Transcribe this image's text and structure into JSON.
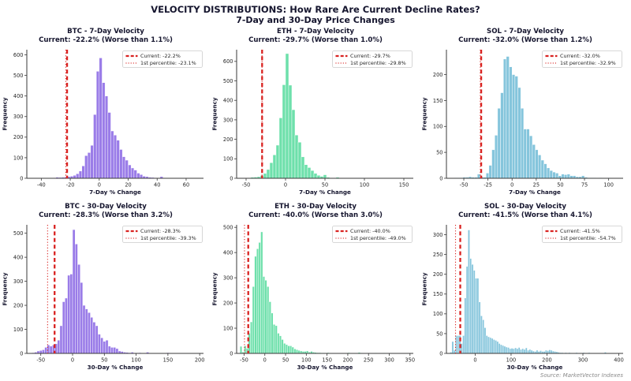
{
  "figure": {
    "title": "VELOCITY DISTRIBUTIONS: How Rare Are Current Decline Rates?",
    "subtitle": "7-Day and 30-Day Price Changes",
    "source": "Source: MarketVector Indexes"
  },
  "colors": {
    "btc": "#9a7ce8",
    "eth": "#6ee0ab",
    "sol": "#85c5dc",
    "line_red": "#d92220",
    "spine": "#3a3a3a"
  },
  "chart_data": [
    {
      "type": "bar",
      "asset": "BTC",
      "title": "BTC - 7-Day Velocity",
      "subtitle": "Current: -22.2% (Worse than 1.1%)",
      "xlabel": "7-Day % Change",
      "ylabel": "Frequency",
      "color": "#9a7ce8",
      "current_line": -22.2,
      "percentile_line": -23.1,
      "legend": [
        {
          "label": "Current: -22.2%",
          "style": "dashed"
        },
        {
          "label": "1st percentile: -23.1%",
          "style": "dotted"
        }
      ],
      "xlim": [
        -50,
        72
      ],
      "ylim": [
        0,
        625
      ],
      "xticks": [
        -40,
        -20,
        0,
        20,
        40,
        60
      ],
      "yticks": [
        0,
        100,
        200,
        300,
        400,
        500,
        600
      ],
      "bins": {
        "start": -46,
        "width": 2,
        "values": [
          1,
          0,
          1,
          1,
          1,
          1,
          2,
          3,
          5,
          4,
          5,
          6,
          8,
          10,
          14,
          22,
          35,
          60,
          110,
          125,
          160,
          310,
          520,
          585,
          465,
          400,
          320,
          230,
          210,
          185,
          140,
          105,
          88,
          65,
          50,
          40,
          25,
          18,
          10,
          8,
          5,
          4,
          3,
          2,
          8,
          2,
          1,
          1,
          1,
          0,
          1,
          0,
          0,
          1,
          0,
          1
        ]
      }
    },
    {
      "type": "bar",
      "asset": "ETH",
      "title": "ETH - 7-Day Velocity",
      "subtitle": "Current: -29.7% (Worse than 1.0%)",
      "xlabel": "7-Day % Change",
      "ylabel": "Frequency",
      "color": "#6ee0ab",
      "current_line": -29.7,
      "percentile_line": -29.8,
      "legend": [
        {
          "label": "Current: -29.7%",
          "style": "dashed"
        },
        {
          "label": "1st percentile: -29.8%",
          "style": "dotted"
        }
      ],
      "xlim": [
        -62,
        162
      ],
      "ylim": [
        0,
        660
      ],
      "xticks": [
        -50,
        0,
        50,
        100,
        150
      ],
      "yticks": [
        0,
        100,
        200,
        300,
        400,
        500,
        600
      ],
      "bins": {
        "start": -56,
        "width": 4,
        "values": [
          2,
          2,
          3,
          5,
          6,
          8,
          14,
          25,
          45,
          80,
          120,
          170,
          310,
          480,
          640,
          478,
          352,
          222,
          185,
          110,
          70,
          55,
          40,
          25,
          15,
          10,
          18,
          5,
          3,
          1,
          5,
          1,
          0,
          1,
          0,
          0,
          0,
          1,
          0,
          0,
          0,
          0,
          0,
          0,
          0,
          0,
          0,
          0,
          0,
          1
        ]
      }
    },
    {
      "type": "bar",
      "asset": "SOL",
      "title": "SOL - 7-Day Velocity",
      "subtitle": "Current: -32.0% (Worse than 1.2%)",
      "xlabel": "7-Day % Change",
      "ylabel": "Frequency",
      "color": "#85c5dc",
      "current_line": -32.0,
      "percentile_line": -32.9,
      "legend": [
        {
          "label": "Current: -32.0%",
          "style": "dashed"
        },
        {
          "label": "1st percentile: -32.9%",
          "style": "dotted"
        }
      ],
      "xlim": [
        -68,
        115
      ],
      "ylim": [
        0,
        248
      ],
      "xticks": [
        -50,
        -25,
        0,
        25,
        50,
        75,
        100
      ],
      "yticks": [
        0,
        50,
        100,
        150,
        200
      ],
      "bins": {
        "start": -60,
        "width": 3,
        "values": [
          1,
          1,
          1,
          2,
          2,
          3,
          2,
          2,
          8,
          3,
          2,
          10,
          25,
          55,
          83,
          135,
          165,
          230,
          235,
          215,
          200,
          197,
          175,
          135,
          95,
          95,
          82,
          65,
          55,
          45,
          35,
          28,
          20,
          15,
          12,
          10,
          5,
          8,
          7,
          8,
          5,
          5,
          3,
          3,
          5,
          2,
          1,
          1,
          1,
          0,
          1,
          0,
          0,
          1,
          0
        ]
      }
    },
    {
      "type": "bar",
      "asset": "BTC",
      "title": "BTC - 30-Day Velocity",
      "subtitle": "Current: -28.3% (Worse than 3.2%)",
      "xlabel": "30-Day % Change",
      "ylabel": "Frequency",
      "color": "#9a7ce8",
      "current_line": -28.3,
      "percentile_line": -39.3,
      "legend": [
        {
          "label": "Current: -28.3%",
          "style": "dashed"
        },
        {
          "label": "1st percentile: -39.3%",
          "style": "dotted"
        }
      ],
      "xlim": [
        -72,
        206
      ],
      "ylim": [
        0,
        535
      ],
      "xticks": [
        -50,
        0,
        50,
        100,
        150,
        200
      ],
      "yticks": [
        0,
        100,
        200,
        300,
        400,
        500
      ],
      "bins": {
        "start": -64,
        "width": 4,
        "values": [
          3,
          5,
          10,
          12,
          15,
          25,
          35,
          30,
          35,
          40,
          55,
          115,
          215,
          230,
          325,
          330,
          515,
          455,
          370,
          295,
          200,
          185,
          170,
          150,
          130,
          115,
          80,
          65,
          50,
          55,
          30,
          25,
          25,
          20,
          10,
          8,
          5,
          4,
          3,
          5,
          2,
          2,
          3,
          1,
          1,
          5,
          1,
          0,
          1,
          0,
          0,
          1,
          0,
          3
        ]
      }
    },
    {
      "type": "bar",
      "asset": "ETH",
      "title": "ETH - 30-Day Velocity",
      "subtitle": "Current: -40.0% (Worse than 3.0%)",
      "xlabel": "30-Day % Change",
      "ylabel": "Frequency",
      "color": "#6ee0ab",
      "current_line": -40.0,
      "percentile_line": -49.0,
      "legend": [
        {
          "label": "Current: -40.0%",
          "style": "dashed"
        },
        {
          "label": "1st percentile: -49.0%",
          "style": "dotted"
        }
      ],
      "xlim": [
        -68,
        358
      ],
      "ylim": [
        0,
        510
      ],
      "xticks": [
        -50,
        0,
        50,
        100,
        150,
        200,
        250,
        300,
        350
      ],
      "yticks": [
        0,
        100,
        200,
        300,
        400,
        500
      ],
      "bins": {
        "start": -60,
        "width": 5,
        "values": [
          28,
          5,
          30,
          20,
          80,
          125,
          265,
          385,
          415,
          440,
          482,
          305,
          290,
          265,
          205,
          160,
          115,
          110,
          80,
          70,
          55,
          40,
          35,
          30,
          30,
          25,
          18,
          15,
          12,
          10,
          8,
          8,
          10,
          5,
          8,
          5,
          4,
          3,
          3,
          2,
          2,
          1,
          3,
          1,
          1,
          1,
          1,
          1,
          1,
          1,
          1,
          1,
          3,
          1,
          1,
          1,
          1,
          4,
          2,
          1,
          1,
          0,
          1,
          0,
          1,
          2,
          0,
          1,
          0,
          2,
          0,
          1,
          0,
          1,
          0,
          0,
          1,
          0,
          0,
          0,
          1,
          0,
          1
        ]
      }
    },
    {
      "type": "bar",
      "asset": "SOL",
      "title": "SOL - 30-Day Velocity",
      "subtitle": "Current: -41.5% (Worse than 4.1%)",
      "xlabel": "30-Day % Change",
      "ylabel": "Frequency",
      "color": "#85c5dc",
      "current_line": -41.5,
      "percentile_line": -54.7,
      "legend": [
        {
          "label": "Current: -41.5%",
          "style": "dashed"
        },
        {
          "label": "1st percentile: -54.7%",
          "style": "dotted"
        }
      ],
      "xlim": [
        -80,
        412
      ],
      "ylim": [
        0,
        325
      ],
      "xticks": [
        0,
        100,
        200,
        300,
        400
      ],
      "yticks": [
        0,
        50,
        100,
        150,
        200,
        250,
        300
      ],
      "bins": {
        "start": -70,
        "width": 5,
        "values": [
          3,
          30,
          8,
          45,
          45,
          45,
          25,
          45,
          140,
          220,
          312,
          240,
          225,
          210,
          190,
          190,
          130,
          95,
          85,
          65,
          45,
          42,
          40,
          38,
          35,
          33,
          30,
          25,
          22,
          20,
          18,
          16,
          15,
          12,
          13,
          12,
          14,
          12,
          15,
          10,
          12,
          10,
          14,
          8,
          10,
          8,
          6,
          5,
          8,
          5,
          7,
          5,
          5,
          8,
          7,
          9,
          8,
          6,
          5,
          4,
          3,
          2,
          2,
          1,
          2,
          1,
          2,
          1,
          1,
          1,
          2,
          1,
          1,
          1,
          2,
          1,
          1,
          2,
          1,
          1,
          1,
          1,
          1,
          1,
          1,
          1,
          3,
          1,
          1,
          0,
          1,
          0,
          1
        ]
      }
    }
  ]
}
